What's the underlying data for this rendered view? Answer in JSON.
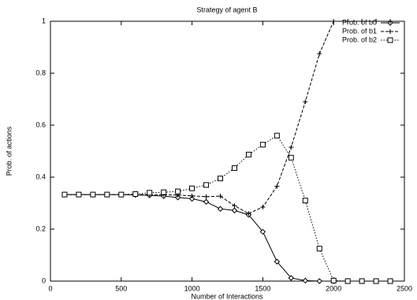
{
  "chart_data": {
    "type": "line",
    "title": "Strategy of agent B",
    "x_label": "Number of Interactions",
    "y_label": "Prob. of actions",
    "x": [
      100,
      200,
      300,
      400,
      500,
      600,
      700,
      800,
      900,
      1000,
      1100,
      1200,
      1300,
      1400,
      1500,
      1600,
      1700,
      1800,
      1900,
      2000,
      2100,
      2200,
      2300,
      2400
    ],
    "series": [
      {
        "name": "Prob. of b0",
        "color": "#000000",
        "dash": "solid",
        "marker": "diamond",
        "values": [
          0.333,
          0.333,
          0.333,
          0.333,
          0.333,
          0.332,
          0.33,
          0.327,
          0.322,
          0.317,
          0.305,
          0.278,
          0.272,
          0.255,
          0.19,
          0.075,
          0.012,
          0.002,
          0,
          0,
          0,
          0,
          0,
          0
        ]
      },
      {
        "name": "Prob. of b1",
        "color": "#000000",
        "dash": "dashed",
        "marker": "plus",
        "values": [
          0.333,
          0.333,
          0.333,
          0.333,
          0.333,
          0.333,
          0.333,
          0.332,
          0.331,
          0.328,
          0.325,
          0.327,
          0.29,
          0.26,
          0.285,
          0.365,
          0.515,
          0.69,
          0.875,
          1,
          1,
          1,
          1,
          1
        ]
      },
      {
        "name": "Prob. of b2",
        "color": "#000000",
        "dash": "dotted",
        "marker": "square",
        "values": [
          0.333,
          0.333,
          0.333,
          0.333,
          0.333,
          0.335,
          0.34,
          0.342,
          0.345,
          0.357,
          0.37,
          0.395,
          0.435,
          0.487,
          0.525,
          0.56,
          0.475,
          0.31,
          0.125,
          0.002,
          0,
          0,
          0,
          0
        ]
      }
    ],
    "xlim": [
      0,
      2500
    ],
    "xticks": [
      0,
      500,
      1000,
      1500,
      2000,
      2500
    ],
    "ylim": [
      0,
      1
    ],
    "yticks": [
      0,
      0.2,
      0.4,
      0.6,
      0.8,
      1
    ],
    "legend": "top-right"
  }
}
